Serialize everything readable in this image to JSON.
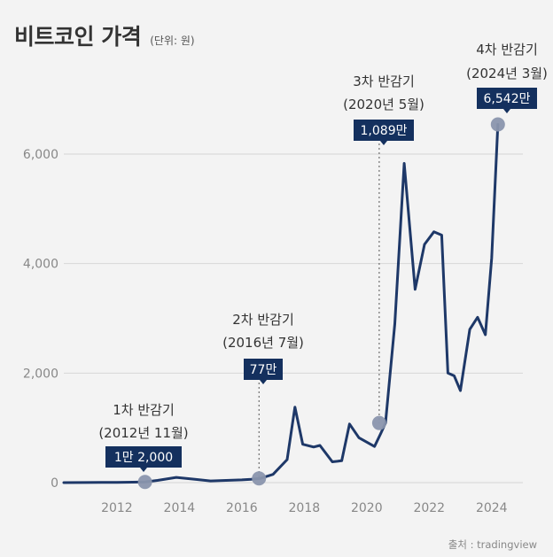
{
  "title": "비트코인 가격",
  "unit": "(단위: 원)",
  "source": "출처 : tradingview",
  "colors": {
    "line": "#1e3868",
    "marker": "#8a95ad",
    "label_box": "#14305e",
    "label_text": "#ffffff",
    "axis_text": "#888888",
    "grid": "#d6d6d6",
    "annotation": "#333333"
  },
  "chart_data": {
    "type": "line",
    "title": "비트코인 가격",
    "ylabel": "",
    "xlabel": "",
    "xlim": [
      2010.3,
      2025.0
    ],
    "ylim": [
      0,
      7000
    ],
    "grid": true,
    "xticks": [
      2012,
      2014,
      2016,
      2018,
      2020,
      2022,
      2024
    ],
    "yticks": [
      0,
      2000,
      4000,
      6000
    ],
    "ytick_labels": [
      "0",
      "2,000",
      "4,000",
      "6,000"
    ],
    "series": [
      {
        "points": [
          [
            2010.3,
            0
          ],
          [
            2011.0,
            2
          ],
          [
            2011.5,
            5
          ],
          [
            2012.0,
            4
          ],
          [
            2012.5,
            8
          ],
          [
            2012.9,
            12
          ],
          [
            2013.3,
            40
          ],
          [
            2013.9,
            95
          ],
          [
            2014.5,
            60
          ],
          [
            2015.0,
            30
          ],
          [
            2015.5,
            40
          ],
          [
            2016.0,
            50
          ],
          [
            2016.3,
            60
          ],
          [
            2016.6,
            77
          ],
          [
            2017.0,
            150
          ],
          [
            2017.45,
            420
          ],
          [
            2017.7,
            1380
          ],
          [
            2017.95,
            700
          ],
          [
            2018.3,
            650
          ],
          [
            2018.5,
            680
          ],
          [
            2018.9,
            380
          ],
          [
            2019.2,
            400
          ],
          [
            2019.45,
            1070
          ],
          [
            2019.75,
            820
          ],
          [
            2020.25,
            660
          ],
          [
            2020.45,
            900
          ],
          [
            2020.6,
            1089
          ],
          [
            2020.9,
            2900
          ],
          [
            2021.2,
            5830
          ],
          [
            2021.55,
            3530
          ],
          [
            2021.85,
            4350
          ],
          [
            2022.15,
            4580
          ],
          [
            2022.4,
            4520
          ],
          [
            2022.6,
            2000
          ],
          [
            2022.8,
            1950
          ],
          [
            2023.0,
            1680
          ],
          [
            2023.3,
            2800
          ],
          [
            2023.55,
            3020
          ],
          [
            2023.8,
            2700
          ],
          [
            2024.0,
            4100
          ],
          [
            2024.2,
            6542
          ]
        ]
      }
    ],
    "events": [
      {
        "line1": "1차 반감기",
        "line2": "(2012년 11월)",
        "value_label": "1만 2,000",
        "x": 2012.9,
        "y": 12
      },
      {
        "line1": "2차 반감기",
        "line2": "(2016년 7월)",
        "value_label": "77만",
        "x": 2016.55,
        "y": 77
      },
      {
        "line1": "3차 반감기",
        "line2": "(2020년 5월)",
        "value_label": "1,089만",
        "x": 2020.4,
        "y": 1089
      },
      {
        "line1": "4차 반감기",
        "line2": "(2024년 3월)",
        "value_label": "6,542만",
        "x": 2024.2,
        "y": 6542
      }
    ]
  }
}
